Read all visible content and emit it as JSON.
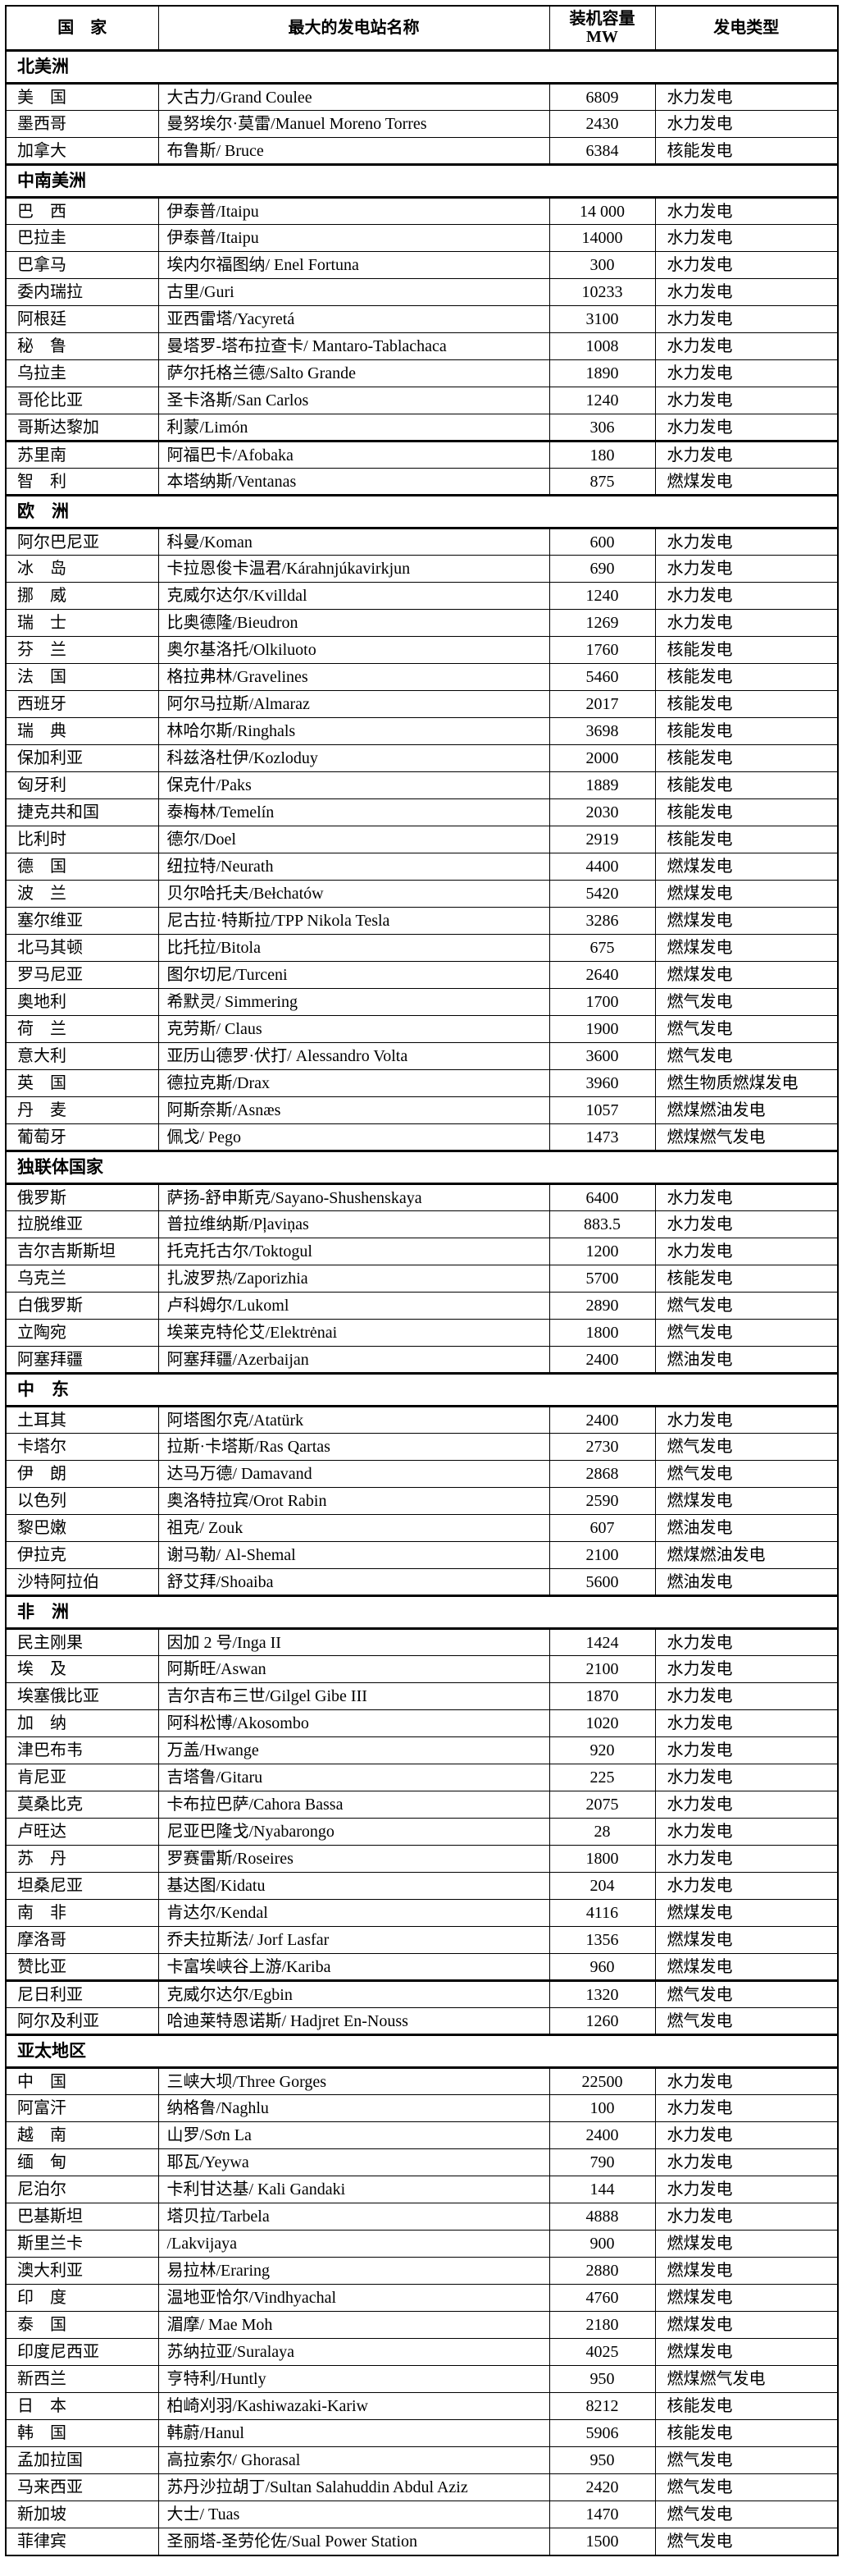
{
  "header": {
    "country": "国　家",
    "station": "最大的发电站名称",
    "capacity_line1": "装机容量",
    "capacity_line2": "MW",
    "type": "发电类型"
  },
  "sections": [
    {
      "label": "北美洲",
      "rows": [
        {
          "country": "美　国",
          "station": "大古力/Grand Coulee",
          "mw": "6809",
          "type": "水力发电"
        },
        {
          "country": "墨西哥",
          "station": "曼努埃尔·莫雷/Manuel Moreno Torres",
          "mw": "2430",
          "type": "水力发电"
        },
        {
          "country": "加拿大",
          "station": "布鲁斯/ Bruce",
          "mw": "6384",
          "type": "核能发电"
        }
      ]
    },
    {
      "label": "中南美洲",
      "rows": [
        {
          "country": "巴　西",
          "station": "伊泰普/Itaipu",
          "mw": "14 000",
          "type": "水力发电"
        },
        {
          "country": "巴拉圭",
          "station": "伊泰普/Itaipu",
          "mw": "14000",
          "type": "水力发电"
        },
        {
          "country": "巴拿马",
          "station": "埃内尔福图纳/ Enel Fortuna",
          "mw": "300",
          "type": "水力发电"
        },
        {
          "country": "委内瑞拉",
          "station": "古里/Guri",
          "mw": "10233",
          "type": "水力发电"
        },
        {
          "country": "阿根廷",
          "station": "亚西雷塔/Yacyretá",
          "mw": "3100",
          "type": "水力发电"
        },
        {
          "country": "秘　鲁",
          "station": "曼塔罗-塔布拉查卡/ Mantaro-Tablachaca",
          "mw": "1008",
          "type": "水力发电"
        },
        {
          "country": "乌拉圭",
          "station": "萨尔托格兰德/Salto Grande",
          "mw": "1890",
          "type": "水力发电"
        },
        {
          "country": "哥伦比亚",
          "station": "圣卡洛斯/San Carlos",
          "mw": "1240",
          "type": "水力发电"
        },
        {
          "country": "哥斯达黎加",
          "station": "利蒙/Limón",
          "mw": "306",
          "type": "水力发电"
        },
        {
          "country": "苏里南",
          "station": "阿福巴卡/Afobaka",
          "mw": "180",
          "type": "水力发电",
          "thick_top": true
        },
        {
          "country": "智　利",
          "station": "本塔纳斯/Ventanas",
          "mw": "875",
          "type": "燃煤发电"
        }
      ]
    },
    {
      "label": "欧　洲",
      "rows": [
        {
          "country": "阿尔巴尼亚",
          "station": "科曼/Koman",
          "mw": "600",
          "type": "水力发电"
        },
        {
          "country": "冰　岛",
          "station": "卡拉恩俊卡温君/Kárahnjúkavirkjun",
          "mw": "690",
          "type": "水力发电"
        },
        {
          "country": "挪　威",
          "station": "克威尔达尔/Kvilldal",
          "mw": "1240",
          "type": "水力发电"
        },
        {
          "country": "瑞　士",
          "station": "比奥德隆/Bieudron",
          "mw": "1269",
          "type": "水力发电"
        },
        {
          "country": "芬　兰",
          "station": "奥尔基洛托/Olkiluoto",
          "mw": "1760",
          "type": "核能发电"
        },
        {
          "country": "法　国",
          "station": "格拉弗林/Gravelines",
          "mw": "5460",
          "type": "核能发电"
        },
        {
          "country": "西班牙",
          "station": "阿尔马拉斯/Almaraz",
          "mw": "2017",
          "type": "核能发电"
        },
        {
          "country": "瑞　典",
          "station": "林哈尔斯/Ringhals",
          "mw": "3698",
          "type": "核能发电"
        },
        {
          "country": "保加利亚",
          "station": "科兹洛杜伊/Kozloduy",
          "mw": "2000",
          "type": "核能发电"
        },
        {
          "country": "匈牙利",
          "station": "保克什/Paks",
          "mw": "1889",
          "type": "核能发电"
        },
        {
          "country": "捷克共和国",
          "station": "泰梅林/Temelín",
          "mw": "2030",
          "type": "核能发电"
        },
        {
          "country": "比利时",
          "station": "德尔/Doel",
          "mw": "2919",
          "type": "核能发电"
        },
        {
          "country": "德　国",
          "station": "纽拉特/Neurath",
          "mw": "4400",
          "type": "燃煤发电"
        },
        {
          "country": "波　兰",
          "station": "贝尔哈托夫/Bełchatów",
          "mw": "5420",
          "type": "燃煤发电"
        },
        {
          "country": "塞尔维亚",
          "station": "尼古拉·特斯拉/TPP Nikola Tesla",
          "mw": "3286",
          "type": "燃煤发电"
        },
        {
          "country": "北马其顿",
          "station": "比托拉/Bitola",
          "mw": "675",
          "type": "燃煤发电"
        },
        {
          "country": "罗马尼亚",
          "station": "图尔切尼/Turceni",
          "mw": "2640",
          "type": "燃煤发电"
        },
        {
          "country": "奥地利",
          "station": "希默灵/ Simmering",
          "mw": "1700",
          "type": "燃气发电"
        },
        {
          "country": "荷　兰",
          "station": "克劳斯/ Claus",
          "mw": "1900",
          "type": "燃气发电"
        },
        {
          "country": "意大利",
          "station": "亚历山德罗·伏打/ Alessandro Volta",
          "mw": "3600",
          "type": "燃气发电"
        },
        {
          "country": "英　国",
          "station": "德拉克斯/Drax",
          "mw": "3960",
          "type": "燃生物质燃煤发电"
        },
        {
          "country": "丹　麦",
          "station": "阿斯奈斯/Asnæs",
          "mw": "1057",
          "type": "燃煤燃油发电"
        },
        {
          "country": "葡萄牙",
          "station": "佩戈/ Pego",
          "mw": "1473",
          "type": "燃煤燃气发电"
        }
      ]
    },
    {
      "label": "独联体国家",
      "rows": [
        {
          "country": "俄罗斯",
          "station": "萨扬-舒申斯克/Sayano-Shushenskaya",
          "mw": "6400",
          "type": "水力发电"
        },
        {
          "country": "拉脱维亚",
          "station": "普拉维纳斯/Pļaviņas",
          "mw": "883.5",
          "type": "水力发电"
        },
        {
          "country": "吉尔吉斯斯坦",
          "station": "托克托古尔/Toktogul",
          "mw": "1200",
          "type": "水力发电"
        },
        {
          "country": "乌克兰",
          "station": "扎波罗热/Zaporizhia",
          "mw": "5700",
          "type": "核能发电"
        },
        {
          "country": "白俄罗斯",
          "station": "卢科姆尔/Lukoml",
          "mw": "2890",
          "type": "燃气发电"
        },
        {
          "country": "立陶宛",
          "station": "埃莱克特伦艾/Elektrėnai",
          "mw": "1800",
          "type": "燃气发电"
        },
        {
          "country": "阿塞拜疆",
          "station": "阿塞拜疆/Azerbaijan",
          "mw": "2400",
          "type": "燃油发电"
        }
      ]
    },
    {
      "label": "中　东",
      "rows": [
        {
          "country": "土耳其",
          "station": "阿塔图尔克/Atatürk",
          "mw": "2400",
          "type": "水力发电"
        },
        {
          "country": "卡塔尔",
          "station": "拉斯·卡塔斯/Ras Qartas",
          "mw": "2730",
          "type": "燃气发电"
        },
        {
          "country": "伊　朗",
          "station": "达马万德/ Damavand",
          "mw": "2868",
          "type": "燃气发电"
        },
        {
          "country": "以色列",
          "station": "奥洛特拉宾/Orot Rabin",
          "mw": "2590",
          "type": "燃煤发电"
        },
        {
          "country": "黎巴嫩",
          "station": "祖克/ Zouk",
          "mw": "607",
          "type": "燃油发电"
        },
        {
          "country": "伊拉克",
          "station": "谢马勒/ Al-Shemal",
          "mw": "2100",
          "type": "燃煤燃油发电"
        },
        {
          "country": "沙特阿拉伯",
          "station": "舒艾拜/Shoaiba",
          "mw": "5600",
          "type": "燃油发电"
        }
      ]
    },
    {
      "label": "非　洲",
      "rows": [
        {
          "country": "民主刚果",
          "station": "因加 2 号/Inga II",
          "mw": "1424",
          "type": "水力发电"
        },
        {
          "country": "埃　及",
          "station": "阿斯旺/Aswan",
          "mw": "2100",
          "type": "水力发电"
        },
        {
          "country": "埃塞俄比亚",
          "station": "吉尔吉布三世/Gilgel Gibe III",
          "mw": "1870",
          "type": "水力发电"
        },
        {
          "country": "加　纳",
          "station": "阿科松博/Akosombo",
          "mw": "1020",
          "type": "水力发电"
        },
        {
          "country": "津巴布韦",
          "station": "万盖/Hwange",
          "mw": "920",
          "type": "水力发电"
        },
        {
          "country": "肯尼亚",
          "station": "吉塔鲁/Gitaru",
          "mw": "225",
          "type": "水力发电"
        },
        {
          "country": "莫桑比克",
          "station": "卡布拉巴萨/Cahora Bassa",
          "mw": "2075",
          "type": "水力发电"
        },
        {
          "country": "卢旺达",
          "station": "尼亚巴隆戈/Nyabarongo",
          "mw": "28",
          "type": "水力发电"
        },
        {
          "country": "苏　丹",
          "station": "罗赛雷斯/Roseires",
          "mw": "1800",
          "type": "水力发电"
        },
        {
          "country": "坦桑尼亚",
          "station": "基达图/Kidatu",
          "mw": "204",
          "type": "水力发电"
        },
        {
          "country": "南　非",
          "station": "肯达尔/Kendal",
          "mw": "4116",
          "type": "燃煤发电"
        },
        {
          "country": "摩洛哥",
          "station": "乔夫拉斯法/ Jorf Lasfar",
          "mw": "1356",
          "type": "燃煤发电"
        },
        {
          "country": "赞比亚",
          "station": "卡富埃峡谷上游/Kariba",
          "mw": "960",
          "type": "燃煤发电"
        },
        {
          "country": "尼日利亚",
          "station": "克威尔达尔/Egbin",
          "mw": "1320",
          "type": "燃气发电",
          "thick_top": true
        },
        {
          "country": "阿尔及利亚",
          "station": "哈迪莱特恩诺斯/ Hadjret En-Nouss",
          "mw": "1260",
          "type": "燃气发电"
        }
      ]
    },
    {
      "label": "亚太地区",
      "rows": [
        {
          "country": "中　国",
          "station": "三峡大坝/Three Gorges",
          "mw": "22500",
          "type": "水力发电"
        },
        {
          "country": "阿富汗",
          "station": "纳格鲁/Naghlu",
          "mw": "100",
          "type": "水力发电"
        },
        {
          "country": "越　南",
          "station": "山罗/Sơn La",
          "mw": "2400",
          "type": "水力发电"
        },
        {
          "country": "缅　甸",
          "station": "耶瓦/Yeywa",
          "mw": "790",
          "type": "水力发电"
        },
        {
          "country": "尼泊尔",
          "station": "卡利甘达基/ Kali Gandaki",
          "mw": "144",
          "type": "水力发电"
        },
        {
          "country": "巴基斯坦",
          "station": "塔贝拉/Tarbela",
          "mw": "4888",
          "type": "水力发电"
        },
        {
          "country": "斯里兰卡",
          "station": "/Lakvijaya",
          "mw": "900",
          "type": "燃煤发电"
        },
        {
          "country": "澳大利亚",
          "station": "易拉林/Eraring",
          "mw": "2880",
          "type": "燃煤发电"
        },
        {
          "country": "印　度",
          "station": "温地亚恰尔/Vindhyachal",
          "mw": "4760",
          "type": "燃煤发电"
        },
        {
          "country": "泰　国",
          "station": "湄摩/ Mae Moh",
          "mw": "2180",
          "type": "燃煤发电"
        },
        {
          "country": "印度尼西亚",
          "station": "苏纳拉亚/Suralaya",
          "mw": "4025",
          "type": "燃煤发电"
        },
        {
          "country": "新西兰",
          "station": "亨特利/Huntly",
          "mw": "950",
          "type": "燃煤燃气发电"
        },
        {
          "country": "日　本",
          "station": "柏崎刈羽/Kashiwazaki-Kariw",
          "mw": "8212",
          "type": "核能发电"
        },
        {
          "country": "韩　国",
          "station": "韩蔚/Hanul",
          "mw": "5906",
          "type": "核能发电"
        },
        {
          "country": "孟加拉国",
          "station": "高拉索尔/ Ghorasal",
          "mw": "950",
          "type": "燃气发电"
        },
        {
          "country": "马来西亚",
          "station": "苏丹沙拉胡丁/Sultan Salahuddin Abdul Aziz",
          "mw": "2420",
          "type": "燃气发电"
        },
        {
          "country": "新加坡",
          "station": "大士/ Tuas",
          "mw": "1470",
          "type": "燃气发电"
        },
        {
          "country": "菲律宾",
          "station": "圣丽塔-圣劳伦佐/Sual Power Station",
          "mw": "1500",
          "type": "燃气发电"
        }
      ]
    }
  ]
}
